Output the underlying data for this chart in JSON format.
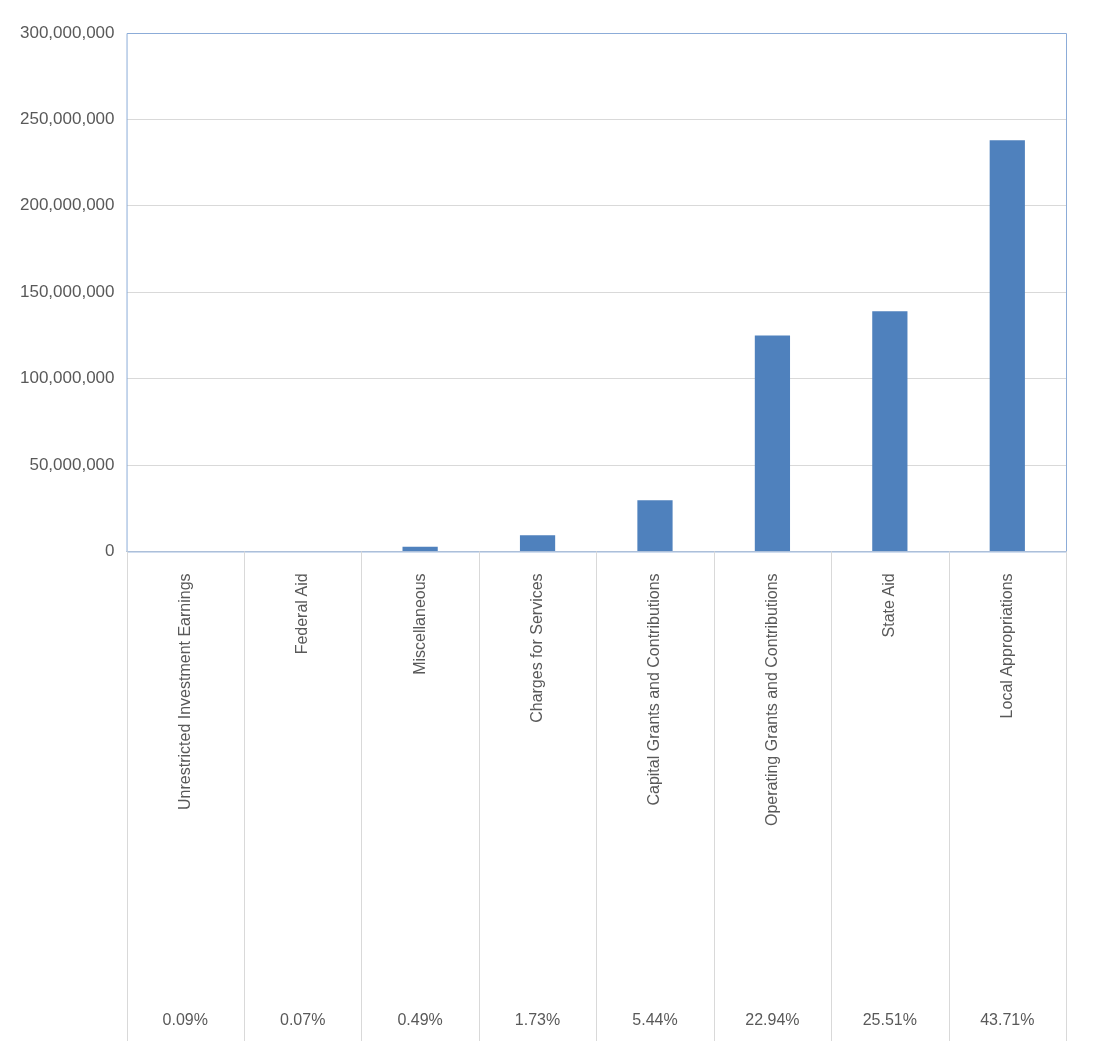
{
  "chart_data": {
    "type": "bar",
    "categories": [
      "Unrestricted Investment Earnings",
      "Federal Aid",
      "Miscellaneous",
      "Charges for Services",
      "Capital Grants and Contributions",
      "Operating Grants and Contributions",
      "State Aid",
      "Local Appropriations"
    ],
    "values": [
      null,
      null,
      2700000,
      9400000,
      29600000,
      125000000,
      139000000,
      238000000
    ],
    "color": "#4f81bd",
    "ylim": [
      0,
      300000000
    ],
    "yticks": [
      0,
      {
        "value": 50000000,
        "label": "50,000,000"
      },
      {
        "value": 100000000,
        "label": "100,000,000"
      },
      {
        "value": 150000000,
        "label": "150,000,000"
      },
      {
        "value": 200000000,
        "label": "200,000,000"
      },
      {
        "value": 250000000,
        "label": "250,000,000"
      },
      {
        "value": 300000000,
        "label": "300,000,000"
      }
    ],
    "grid": "y",
    "legend": false,
    "annotations": [
      "0.09%",
      "0.07%",
      "0.49%",
      "1.73%",
      "5.44%",
      "22.94%",
      "25.51%",
      "43.71%"
    ]
  }
}
